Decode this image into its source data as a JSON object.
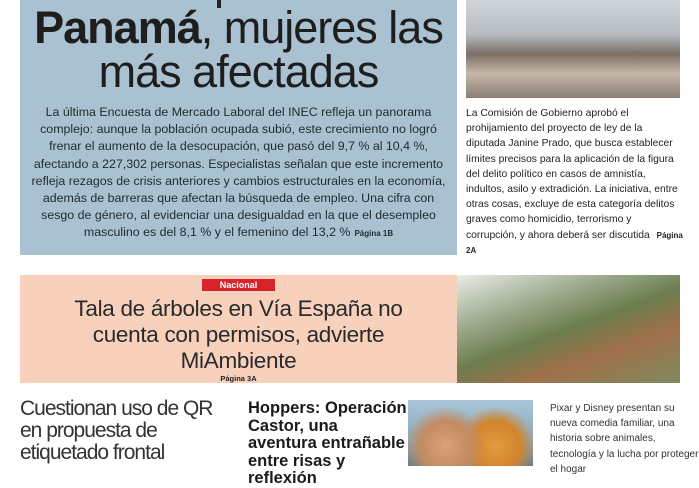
{
  "lead_story": {
    "headline_bold": "Panamá",
    "headline_rest": ", mujeres las",
    "headline_line2": "más afectadas",
    "body": "La última Encuesta de Mercado Laboral del INEC refleja un panorama complejo: aunque la población ocupada subió, este crecimiento no logró frenar el aumento de la desocupación, que pasó del 9,7 % al 10,4 %, afectando a 227,302 personas. Especialistas señalan que este incremento refleja rezagos de crisis anteriores y cambios estructurales en la economía, además de barreras que afectan la búsqueda de empleo. Una cifra con sesgo de género, al evidenciar una desigualdad en la que el desempleo masculino es del 8,1 % y el femenino del 13,2 %",
    "page_ref": "Página 1B"
  },
  "side_story": {
    "body": "La Comisión de Gobierno aprobó el prohijamiento del proyecto de ley de la diputada Janine Prado, que busca establecer límites precisos para la aplicación de la figura del delito político en casos de amnistía, indultos, asilo y extradición. La iniciativa, entre otras cosas, excluye de esta categoría delitos graves como homicidio, terrorismo y corrupción, y ahora deberá ser discutida",
    "page_ref": "Página 2A"
  },
  "national_story": {
    "section_tag": "Nacional",
    "headline": "Tala de árboles en Vía España no cuenta con permisos, advierte MiAmbiente",
    "page_ref": "Página 3A",
    "tag_color": "#d8232a"
  },
  "qr_story": {
    "headline": "Cuestionan uso de QR en propuesta de etiquetado frontal"
  },
  "movie_story": {
    "headline": "Hoppers: Operación Castor, una aventura entrañable entre risas y reflexión",
    "body": "Pixar y Disney presentan su nueva comedia familiar, una historia sobre animales, tecnología y la lucha por proteger el hogar"
  }
}
